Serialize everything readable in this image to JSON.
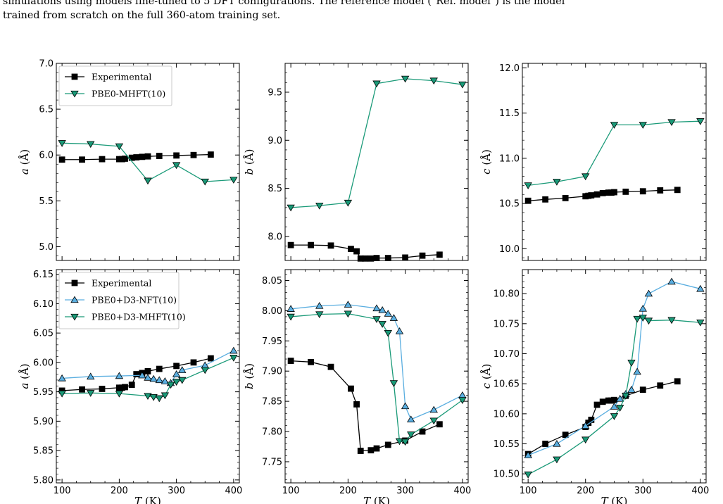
{
  "caption": {
    "line1": "simulations using models fine-tuned to 5 DFT configurations. The reference model (\"Ref. model\") is the model",
    "line2": "trained from scratch on the full 360-atom training set."
  },
  "colors": {
    "experimental": "#000000",
    "nft": "#5aaee0",
    "mhft": "#1a9a78"
  },
  "chart_data": [
    {
      "type": "line",
      "panel": "top-left",
      "xlabel": "",
      "ylabel": "a (Å)",
      "xlim": [
        90,
        410
      ],
      "ylim": [
        4.85,
        7.0
      ],
      "yticks": [
        "5.0",
        "5.5",
        "6.0",
        "6.5",
        "7.0"
      ],
      "xticks": [
        100,
        200,
        300,
        400
      ],
      "show_xticklabels": false,
      "legend_position": "top-left",
      "series": [
        {
          "name": "Experimental",
          "marker": "square",
          "color": "#000000",
          "x": [
            100,
            135,
            170,
            200,
            205,
            210,
            222,
            230,
            240,
            250,
            270,
            300,
            330,
            360
          ],
          "y": [
            5.95,
            5.95,
            5.955,
            5.955,
            5.955,
            5.96,
            5.97,
            5.975,
            5.98,
            5.985,
            5.99,
            5.995,
            6.0,
            6.005
          ]
        },
        {
          "name": "PBE0-MHFT(10)",
          "marker": "triangle-down",
          "color": "#1a9a78",
          "x": [
            100,
            150,
            200,
            250,
            300,
            350,
            400
          ],
          "y": [
            6.13,
            6.12,
            6.095,
            5.72,
            5.89,
            5.71,
            5.73
          ]
        }
      ]
    },
    {
      "type": "line",
      "panel": "top-middle",
      "xlabel": "",
      "ylabel": "b (Å)",
      "xlim": [
        90,
        410
      ],
      "ylim": [
        7.75,
        9.8
      ],
      "yticks": [
        "8.0",
        "8.5",
        "9.0",
        "9.5"
      ],
      "xticks": [
        100,
        200,
        300,
        400
      ],
      "show_xticklabels": false,
      "series": [
        {
          "name": "Experimental",
          "marker": "square",
          "color": "#000000",
          "x": [
            100,
            135,
            170,
            205,
            215,
            222,
            230,
            240,
            250,
            270,
            300,
            330,
            360
          ],
          "y": [
            7.91,
            7.91,
            7.905,
            7.87,
            7.845,
            7.77,
            7.77,
            7.77,
            7.775,
            7.775,
            7.78,
            7.8,
            7.81
          ]
        },
        {
          "name": "PBE0-MHFT(10)",
          "marker": "triangle-down",
          "color": "#1a9a78",
          "x": [
            100,
            150,
            200,
            250,
            300,
            350,
            400
          ],
          "y": [
            8.3,
            8.32,
            8.35,
            9.59,
            9.64,
            9.62,
            9.58
          ]
        }
      ]
    },
    {
      "type": "line",
      "panel": "top-right",
      "xlabel": "",
      "ylabel": "c (Å)",
      "xlim": [
        90,
        410
      ],
      "ylim": [
        9.87,
        12.05
      ],
      "yticks": [
        "10.0",
        "10.5",
        "11.0",
        "11.5",
        "12.0"
      ],
      "xticks": [
        100,
        200,
        300,
        400
      ],
      "show_xticklabels": false,
      "series": [
        {
          "name": "Experimental",
          "marker": "square",
          "color": "#000000",
          "x": [
            100,
            130,
            165,
            200,
            205,
            210,
            220,
            230,
            240,
            245,
            250,
            270,
            300,
            330,
            360
          ],
          "y": [
            10.53,
            10.545,
            10.56,
            10.58,
            10.585,
            10.59,
            10.6,
            10.615,
            10.62,
            10.62,
            10.625,
            10.63,
            10.635,
            10.645,
            10.65
          ]
        },
        {
          "name": "PBE0-MHFT(10)",
          "marker": "triangle-down",
          "color": "#1a9a78",
          "x": [
            100,
            150,
            200,
            250,
            300,
            350,
            400
          ],
          "y": [
            10.7,
            10.74,
            10.8,
            11.37,
            11.37,
            11.4,
            11.41
          ]
        }
      ]
    },
    {
      "type": "line",
      "panel": "bottom-left",
      "xlabel": "T (K)",
      "ylabel": "a (Å)",
      "xlim": [
        90,
        410
      ],
      "ylim": [
        5.795,
        6.158
      ],
      "yticks": [
        "5.80",
        "5.85",
        "5.90",
        "5.95",
        "6.00",
        "6.05",
        "6.10",
        "6.15"
      ],
      "xticks": [
        100,
        200,
        300,
        400
      ],
      "show_xticklabels": true,
      "legend_position": "top-left",
      "series": [
        {
          "name": "Experimental",
          "marker": "square",
          "color": "#000000",
          "x": [
            100,
            135,
            170,
            200,
            205,
            210,
            222,
            230,
            240,
            250,
            270,
            300,
            330,
            360
          ],
          "y": [
            5.952,
            5.954,
            5.955,
            5.957,
            5.957,
            5.958,
            5.962,
            5.98,
            5.982,
            5.985,
            5.989,
            5.994,
            6.0,
            6.007
          ]
        },
        {
          "name": "PBE0+D3-NFT(10)",
          "marker": "triangle-up",
          "color": "#5aaee0",
          "x": [
            100,
            150,
            200,
            240,
            250,
            260,
            270,
            280,
            290,
            300,
            310,
            350,
            400
          ],
          "y": [
            5.973,
            5.976,
            5.977,
            5.978,
            5.974,
            5.972,
            5.97,
            5.968,
            5.965,
            5.98,
            5.987,
            5.995,
            6.02
          ]
        },
        {
          "name": "PBE0+D3-MHFT(10)",
          "marker": "triangle-down",
          "color": "#1a9a78",
          "x": [
            100,
            150,
            200,
            250,
            260,
            270,
            280,
            290,
            300,
            310,
            350,
            400
          ],
          "y": [
            5.947,
            5.948,
            5.947,
            5.943,
            5.941,
            5.939,
            5.944,
            5.962,
            5.967,
            5.97,
            5.987,
            6.008
          ]
        }
      ]
    },
    {
      "type": "line",
      "panel": "bottom-middle",
      "xlabel": "T (K)",
      "ylabel": "b (Å)",
      "xlim": [
        90,
        410
      ],
      "ylim": [
        7.715,
        8.068
      ],
      "yticks": [
        "7.75",
        "7.80",
        "7.85",
        "7.90",
        "7.95",
        "8.00",
        "8.05"
      ],
      "xticks": [
        100,
        200,
        300,
        400
      ],
      "show_xticklabels": true,
      "series": [
        {
          "name": "Experimental",
          "marker": "square",
          "color": "#000000",
          "x": [
            100,
            135,
            170,
            205,
            215,
            222,
            240,
            250,
            270,
            300,
            330,
            360
          ],
          "y": [
            7.917,
            7.915,
            7.907,
            7.871,
            7.845,
            7.768,
            7.769,
            7.772,
            7.778,
            7.785,
            7.8,
            7.812
          ]
        },
        {
          "name": "PBE0+D3-NFT(10)",
          "marker": "triangle-up",
          "color": "#5aaee0",
          "x": [
            100,
            150,
            200,
            250,
            260,
            270,
            280,
            290,
            300,
            310,
            350,
            400
          ],
          "y": [
            8.003,
            8.008,
            8.01,
            8.004,
            8.001,
            7.995,
            7.988,
            7.966,
            7.842,
            7.82,
            7.836,
            7.86
          ]
        },
        {
          "name": "PBE0+D3-MHFT(10)",
          "marker": "triangle-down",
          "color": "#1a9a78",
          "x": [
            100,
            150,
            200,
            250,
            260,
            270,
            280,
            290,
            300,
            310,
            350,
            400
          ],
          "y": [
            7.99,
            7.994,
            7.995,
            7.986,
            7.978,
            7.963,
            7.88,
            7.784,
            7.783,
            7.795,
            7.818,
            7.852
          ]
        }
      ]
    },
    {
      "type": "line",
      "panel": "bottom-right",
      "xlabel": "T (K)",
      "ylabel": "c (Å)",
      "xlim": [
        90,
        410
      ],
      "ylim": [
        10.485,
        10.84
      ],
      "yticks": [
        "10.50",
        "10.55",
        "10.60",
        "10.65",
        "10.70",
        "10.75",
        "10.80"
      ],
      "xticks": [
        100,
        200,
        300,
        400
      ],
      "show_xticklabels": true,
      "series": [
        {
          "name": "Experimental",
          "marker": "square",
          "color": "#000000",
          "x": [
            100,
            130,
            165,
            200,
            205,
            210,
            220,
            230,
            240,
            245,
            250,
            270,
            300,
            330,
            360
          ],
          "y": [
            10.533,
            10.55,
            10.565,
            10.578,
            10.585,
            10.59,
            10.615,
            10.62,
            10.622,
            10.622,
            10.623,
            10.63,
            10.64,
            10.647,
            10.654
          ]
        },
        {
          "name": "PBE0+D3-NFT(10)",
          "marker": "triangle-up",
          "color": "#5aaee0",
          "x": [
            100,
            150,
            200,
            250,
            260,
            270,
            280,
            290,
            300,
            310,
            350,
            400
          ],
          "y": [
            10.531,
            10.55,
            10.58,
            10.612,
            10.625,
            10.633,
            10.64,
            10.67,
            10.775,
            10.8,
            10.82,
            10.808
          ]
        },
        {
          "name": "PBE0+D3-MHFT(10)",
          "marker": "triangle-down",
          "color": "#1a9a78",
          "x": [
            100,
            150,
            200,
            250,
            260,
            270,
            280,
            290,
            300,
            310,
            350,
            400
          ],
          "y": [
            10.499,
            10.524,
            10.557,
            10.596,
            10.61,
            10.63,
            10.685,
            10.758,
            10.76,
            10.755,
            10.756,
            10.752
          ]
        }
      ]
    }
  ]
}
